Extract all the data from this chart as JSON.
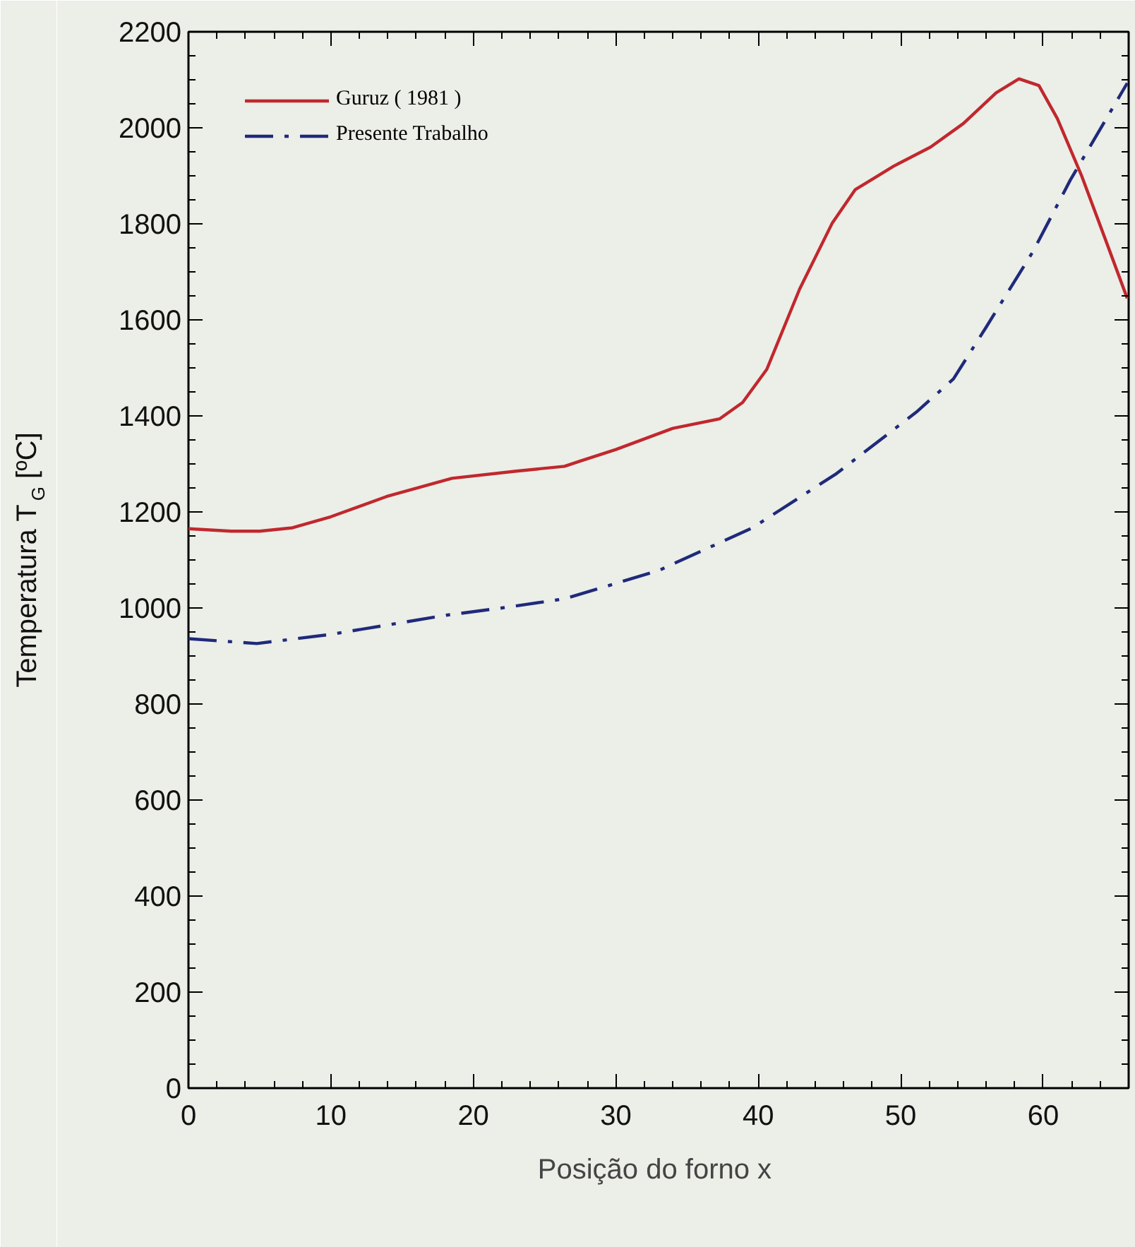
{
  "chart_data": {
    "type": "line",
    "xlabel": "Posição do forno  x",
    "ylabel": "Temperatura T$_{G}$ [ºC]",
    "xlim": [
      0,
      66
    ],
    "xticks": [
      0,
      10,
      20,
      30,
      40,
      50,
      60
    ],
    "ylim": [
      0,
      2200
    ],
    "yticks": [
      0,
      200,
      400,
      600,
      800,
      1000,
      1200,
      1400,
      1600,
      1800,
      2000,
      2200
    ],
    "grid": false,
    "legend": "top left",
    "marker": "none",
    "series": [
      {
        "name": "Guruz ( 1981 )",
        "color": "#c0282d",
        "line_style": "solid",
        "x": [
          0,
          3,
          5,
          7.3,
          10,
          13.9,
          18.5,
          23,
          26.4,
          27.4,
          30,
          34,
          37.3,
          38.9,
          40.6,
          42.9,
          45.2,
          46.8,
          49.5,
          52.1,
          54.4,
          56.7,
          58.3,
          59.7,
          61,
          62.7,
          64.3,
          65.9
        ],
        "values": [
          1165,
          1160,
          1160,
          1167,
          1190,
          1232,
          1270,
          1285,
          1295,
          1305,
          1330,
          1374,
          1394,
          1428,
          1497,
          1664,
          1802,
          1871,
          1920,
          1960,
          2009,
          2073,
          2102,
          2088,
          2019,
          1900,
          1773,
          1645
        ]
      },
      {
        "name": "Presente Trabalho",
        "color": "#1f2a7a",
        "line_style": "dashdot",
        "x": [
          0,
          4.8,
          10,
          18.1,
          22,
          26.4,
          33,
          39.6,
          45.5,
          51.1,
          53.7,
          56,
          59.3,
          61.9,
          65.9
        ],
        "values": [
          936,
          926,
          945,
          985,
          1000,
          1019,
          1078,
          1167,
          1280,
          1408,
          1477,
          1585,
          1743,
          1891,
          2093
        ]
      }
    ]
  }
}
